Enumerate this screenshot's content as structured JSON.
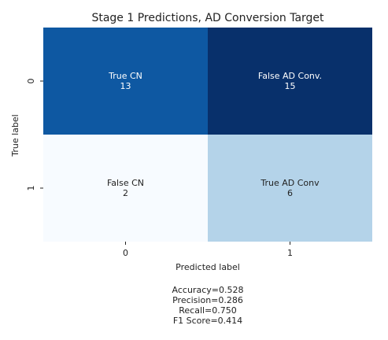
{
  "chart_data": {
    "type": "heatmap",
    "title": "Stage 1 Predictions, AD Conversion Target",
    "xlabel": "Predicted label",
    "ylabel": "True label",
    "x_tick_labels": [
      "0",
      "1"
    ],
    "y_tick_labels": [
      "0",
      "1"
    ],
    "values": [
      [
        13,
        15
      ],
      [
        2,
        6
      ]
    ],
    "cell_labels": [
      [
        "True CN",
        "False AD Conv."
      ],
      [
        "False CN",
        "True AD Conv"
      ]
    ],
    "colormap": "Blues",
    "colorbar": false,
    "grid": false,
    "colors": {
      "low": "#f7fbff",
      "mid_low": "#b2d2e8",
      "mid_high": "#0a5ca6",
      "high": "#08306b",
      "text_dark": "#222222",
      "text_light": "#ffffff"
    }
  },
  "metrics": [
    "Accuracy=0.528",
    "Precision=0.286",
    "Recall=0.750",
    "F1 Score=0.414"
  ]
}
